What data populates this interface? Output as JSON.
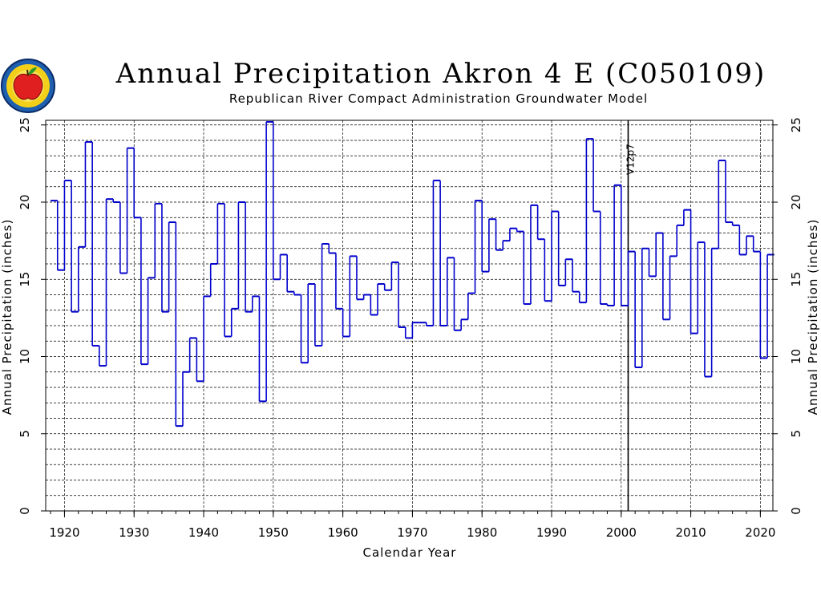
{
  "header": {
    "title": "Annual Precipitation Akron 4 E (C050109)",
    "subtitle": "Republican River Compact Administration Groundwater Model"
  },
  "logo": {
    "icon": "state-seal-apple-logo"
  },
  "colors": {
    "series": "#0000cc",
    "axis": "#000000",
    "grid": "#000000",
    "background": "#ffffff"
  },
  "chart_data": {
    "type": "line",
    "step": true,
    "title": "Annual Precipitation Akron 4 E (C050109)",
    "subtitle": "Republican River Compact Administration Groundwater Model",
    "xlabel": "Calendar Year",
    "ylabel": "Annual Precipitation (inches)",
    "ylabel_right": "Annual Precipitation (inches)",
    "xlim": [
      1917.3,
      1921.8
    ],
    "ylim": [
      0,
      25.3
    ],
    "x_ticks": [
      1920,
      1930,
      1940,
      1950,
      1960,
      1970,
      1980,
      1990,
      2000,
      2010,
      2020
    ],
    "y_ticks": [
      0,
      5,
      10,
      15,
      20,
      25
    ],
    "grid": true,
    "annotations": [
      {
        "x": 2001,
        "label": "V12p7"
      }
    ],
    "series": [
      {
        "x": [
          1918,
          1919,
          1920,
          1921,
          1922,
          1923,
          1924,
          1925,
          1926,
          1927,
          1928,
          1929,
          1930,
          1931,
          1932,
          1933,
          1934,
          1935,
          1936,
          1937,
          1938,
          1939,
          1940,
          1941,
          1942,
          1943,
          1944,
          1945,
          1946,
          1947,
          1948,
          1949,
          1950,
          1951,
          1952,
          1953,
          1954,
          1955,
          1956,
          1957,
          1958,
          1959,
          1960,
          1961,
          1962,
          1963,
          1964,
          1965,
          1966,
          1967,
          1968,
          1969,
          1970,
          1971,
          1972,
          1973,
          1974,
          1975,
          1976,
          1977,
          1978,
          1979,
          1980,
          1981,
          1982,
          1983,
          1984,
          1985,
          1986,
          1987,
          1988,
          1989,
          1990,
          1991,
          1992,
          1993,
          1994,
          1995,
          1996,
          1997,
          1998,
          1999,
          2000,
          2001,
          2002,
          2003,
          2004,
          2005,
          2006,
          2007,
          2008,
          2009,
          2010,
          2011,
          2012,
          2013,
          2014,
          2015,
          2016,
          2017,
          2018,
          2019,
          2020,
          2021
        ],
        "values": [
          20.1,
          15.6,
          21.4,
          12.9,
          17.1,
          23.9,
          10.7,
          9.4,
          20.2,
          20.0,
          15.4,
          23.5,
          19.0,
          9.5,
          15.1,
          19.9,
          12.9,
          18.7,
          5.5,
          9.0,
          11.2,
          8.4,
          13.9,
          16.0,
          19.9,
          11.3,
          13.1,
          20.0,
          12.9,
          13.9,
          7.1,
          25.2,
          15.0,
          16.6,
          14.2,
          14.0,
          9.6,
          14.7,
          10.7,
          17.3,
          16.7,
          13.1,
          11.3,
          16.5,
          13.7,
          14.0,
          12.7,
          14.7,
          14.3,
          16.1,
          11.9,
          11.2,
          12.2,
          12.2,
          12.0,
          21.4,
          12.0,
          16.4,
          11.7,
          12.4,
          14.1,
          20.1,
          15.5,
          18.9,
          16.9,
          17.5,
          18.3,
          18.1,
          13.4,
          19.8,
          17.6,
          13.6,
          19.4,
          14.6,
          16.3,
          14.2,
          13.5,
          24.1,
          19.4,
          13.4,
          13.3,
          21.1,
          13.3,
          16.8,
          9.3,
          17.0,
          15.2,
          18.0,
          12.4,
          16.5,
          18.5,
          19.5,
          11.5,
          17.4,
          8.7,
          17.0,
          22.7,
          18.7,
          18.5,
          16.6,
          17.8,
          16.8,
          9.9,
          16.6
        ]
      }
    ]
  }
}
